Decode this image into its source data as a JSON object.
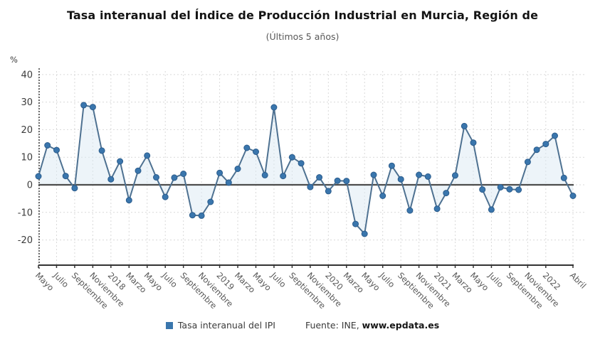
{
  "header": {
    "title": "Tasa interanual del Índice de Producción Industrial en Murcia, Región de",
    "subtitle": "(Últimos 5 años)"
  },
  "legend": {
    "label": "Tasa interanual del IPI",
    "marker_color": "#3a76ad"
  },
  "source": {
    "prefix": "Fuente: INE,",
    "site": "www.epdata.es"
  },
  "chart_data": {
    "type": "line",
    "title": "Tasa interanual del Índice de Producción Industrial en Murcia, Región de",
    "subtitle": "(Últimos 5 años)",
    "xlabel": "",
    "ylabel": "%",
    "ylim": [
      -29,
      41
    ],
    "yticks": [
      40,
      30,
      20,
      10,
      0,
      -10,
      -20
    ],
    "grid": true,
    "legend_position": "bottom",
    "x_tick_labels": [
      "Mayo",
      "Julio",
      "Septiembre",
      "Noviembre",
      "2018",
      "Marzo",
      "Mayo",
      "Julio",
      "Septiembre",
      "Noviembre",
      "2019",
      "Marzo",
      "Mayo",
      "Julio",
      "Septiembre",
      "Noviembre",
      "2020",
      "Marzo",
      "Mayo",
      "Julio",
      "Septiembre",
      "Noviembre",
      "2021",
      "Marzo",
      "Mayo",
      "Julio",
      "Septiembre",
      "Noviembre",
      "2022",
      "Abril"
    ],
    "x_tick_indices": [
      0,
      2,
      4,
      6,
      8,
      10,
      12,
      14,
      16,
      18,
      20,
      22,
      24,
      26,
      28,
      30,
      32,
      34,
      36,
      38,
      40,
      42,
      44,
      46,
      48,
      50,
      52,
      54,
      56,
      59
    ],
    "series": [
      {
        "name": "Tasa interanual del IPI",
        "color": "#4e7191",
        "marker_color": "#3a76ad",
        "area_color": "#dce9f3",
        "values": [
          3.1,
          14.3,
          12.6,
          3.2,
          -1.2,
          28.9,
          28.2,
          12.4,
          2.0,
          8.5,
          -5.6,
          5.1,
          10.6,
          2.7,
          -4.4,
          2.6,
          4.0,
          -11.0,
          -11.2,
          -6.2,
          4.3,
          0.8,
          5.8,
          13.4,
          12.0,
          3.5,
          28.1,
          3.2,
          10.0,
          7.8,
          -0.8,
          2.7,
          -2.3,
          1.5,
          1.4,
          -14.2,
          -17.8,
          3.6,
          -4.0,
          6.9,
          2.0,
          -9.3,
          3.6,
          3.0,
          -8.7,
          -3.0,
          3.4,
          21.3,
          15.3,
          -1.7,
          -9.0,
          -0.9,
          -1.6,
          -1.8,
          8.3,
          12.7,
          14.8,
          17.8,
          2.5,
          -4.0
        ]
      }
    ]
  },
  "colors": {
    "grid": "#d9d9d9",
    "zero_line": "#4d4d4d",
    "axis": "#333333",
    "tick_text": "#3c3c3c",
    "x_tick_text": "#575757"
  }
}
